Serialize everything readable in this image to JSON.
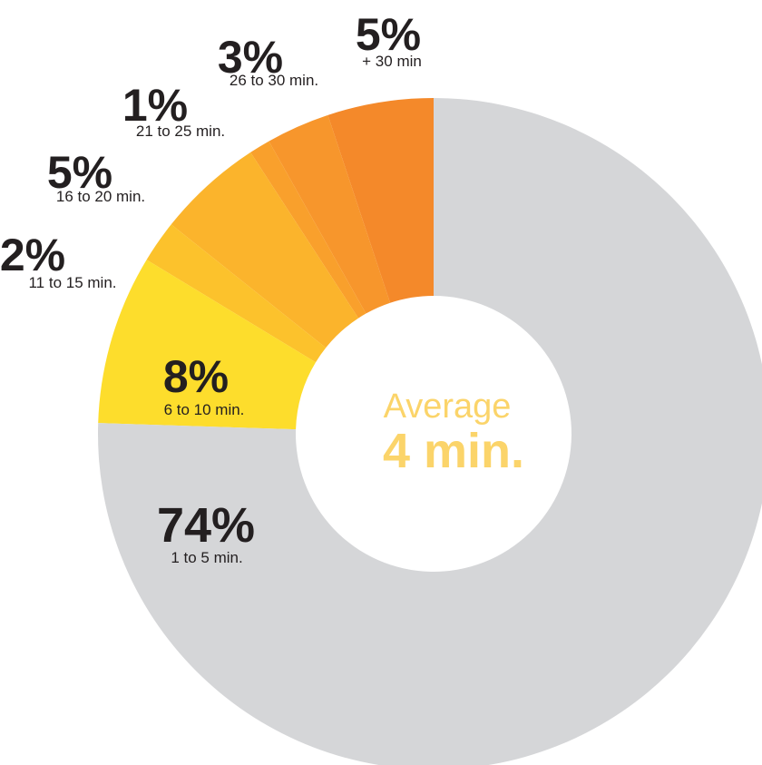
{
  "chart_data": {
    "type": "pie",
    "variant": "donut",
    "direction": "counterclockwise",
    "slices": [
      {
        "percent": "5%",
        "range": "+ 30 min",
        "value": 5,
        "color": "#f4892a"
      },
      {
        "percent": "3%",
        "range": "26 to 30 min.",
        "value": 3,
        "color": "#f7962c"
      },
      {
        "percent": "1%",
        "range": "21 to 25 min.",
        "value": 1,
        "color": "#f9a02c"
      },
      {
        "percent": "5%",
        "range": "16 to 20 min.",
        "value": 5,
        "color": "#fbb42c"
      },
      {
        "percent": "2%",
        "range": "11 to 15 min.",
        "value": 2,
        "color": "#fcc22c"
      },
      {
        "percent": "8%",
        "range": "6 to 10 min.",
        "value": 8,
        "color": "#fddd2c"
      },
      {
        "percent": "74%",
        "range": "1 to 5 min.",
        "value": 74,
        "color": "#d5d6d8"
      }
    ],
    "center": {
      "line1": "Average",
      "line2": "4 min.",
      "color": "#fbd46a"
    }
  }
}
